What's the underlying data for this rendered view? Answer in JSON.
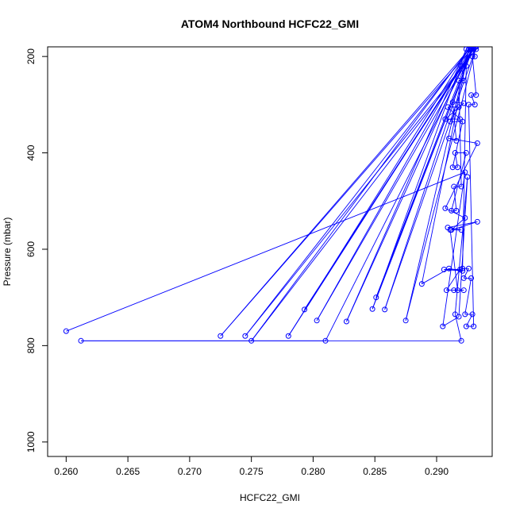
{
  "chart_data": {
    "type": "line",
    "title": "ATOM4 Northbound HCFC22_GMI",
    "xlabel": "HCFC22_GMI",
    "ylabel": "Pressure (mbar)",
    "xlim": [
      0.2585,
      0.2945
    ],
    "ylim": [
      1030,
      180
    ],
    "y_reversed": true,
    "x_ticks": [
      {
        "value": 0.26,
        "label": "0.260"
      },
      {
        "value": 0.265,
        "label": "0.265"
      },
      {
        "value": 0.27,
        "label": "0.270"
      },
      {
        "value": 0.275,
        "label": "0.275"
      },
      {
        "value": 0.28,
        "label": "0.280"
      },
      {
        "value": 0.285,
        "label": "0.285"
      },
      {
        "value": 0.29,
        "label": "0.290"
      }
    ],
    "y_ticks": [
      {
        "value": 200,
        "label": "200"
      },
      {
        "value": 400,
        "label": "400"
      },
      {
        "value": 600,
        "label": "600"
      },
      {
        "value": 800,
        "label": "800"
      },
      {
        "value": 1000,
        "label": "1000"
      }
    ],
    "grid": false,
    "series_color": "#0000ff",
    "series": [
      {
        "x": [
          0.26,
          0.2923,
          0.2905,
          0.2918,
          0.2925,
          0.2915,
          0.292,
          0.2612,
          0.281,
          0.293,
          0.2725,
          0.2928,
          0.2745,
          0.2932,
          0.275,
          0.2926,
          0.278,
          0.2929,
          0.2793,
          0.2931,
          0.2803,
          0.2927,
          0.2827,
          0.2924,
          0.2848,
          0.293,
          0.2851,
          0.2928,
          0.2858,
          0.2932,
          0.2875,
          0.2926,
          0.2888,
          0.291,
          0.2921,
          0.2906,
          0.2919,
          0.2908,
          0.2922,
          0.2914,
          0.2917,
          0.2911,
          0.292,
          0.2909,
          0.2933,
          0.2912,
          0.2923,
          0.2907,
          0.2933,
          0.291,
          0.2916,
          0.2913,
          0.2922,
          0.2907,
          0.2919,
          0.2909,
          0.2918,
          0.2911,
          0.2921,
          0.2913,
          0.2917,
          0.2915,
          0.2924,
          0.2912,
          0.2916,
          0.2914,
          0.292,
          0.2918,
          0.2922,
          0.292,
          0.2924,
          0.2921,
          0.2926,
          0.2922,
          0.2928,
          0.2923,
          0.2929,
          0.2924,
          0.293,
          0.2926,
          0.2931,
          0.2928,
          0.2932,
          0.2929,
          0.2931,
          0.293
        ],
        "y": [
          770,
          440,
          760,
          740,
          450,
          735,
          790,
          790,
          790,
          180,
          780,
          180,
          780,
          185,
          790,
          185,
          780,
          185,
          725,
          180,
          748,
          185,
          750,
          185,
          724,
          180,
          700,
          185,
          725,
          180,
          748,
          185,
          672,
          640,
          645,
          642,
          642,
          685,
          685,
          685,
          685,
          560,
          560,
          555,
          543,
          560,
          535,
          515,
          380,
          370,
          375,
          295,
          297,
          330,
          330,
          305,
          305,
          335,
          335,
          430,
          430,
          400,
          400,
          520,
          520,
          470,
          470,
          250,
          250,
          220,
          220,
          640,
          640,
          660,
          660,
          735,
          735,
          760,
          760,
          300,
          300,
          280,
          280,
          200,
          200,
          185
        ]
      }
    ]
  }
}
